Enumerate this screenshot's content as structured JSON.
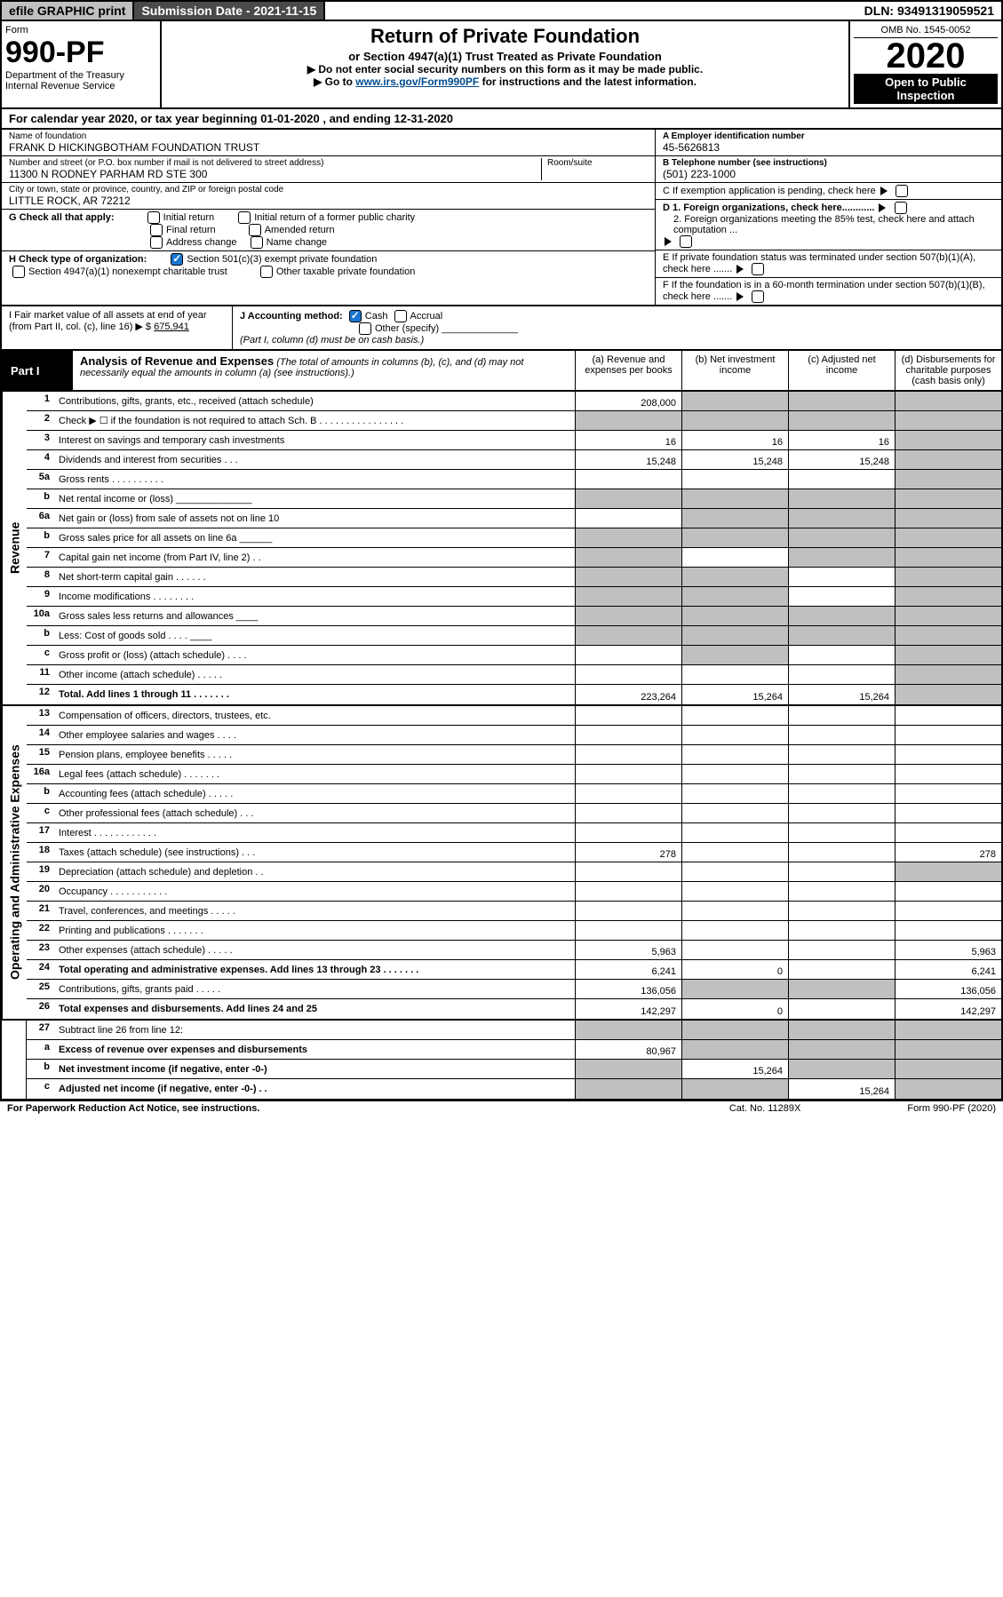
{
  "topbar": {
    "efile": "efile GRAPHIC print",
    "submission": "Submission Date - 2021-11-15",
    "dln": "DLN: 93491319059521"
  },
  "header": {
    "form": "Form",
    "form_no": "990-PF",
    "dept": "Department of the Treasury",
    "irs": "Internal Revenue Service",
    "title": "Return of Private Foundation",
    "sub": "or Section 4947(a)(1) Trust Treated as Private Foundation",
    "note1": "▶ Do not enter social security numbers on this form as it may be made public.",
    "note2_pre": "▶ Go to ",
    "note2_link": "www.irs.gov/Form990PF",
    "note2_post": " for instructions and the latest information.",
    "omb": "OMB No. 1545-0052",
    "year": "2020",
    "inspection": "Open to Public Inspection"
  },
  "calendar": {
    "pre": "For calendar year 2020, or tax year beginning ",
    "begin": "01-01-2020",
    "mid": " , and ending ",
    "end": "12-31-2020"
  },
  "info": {
    "name_lbl": "Name of foundation",
    "name_val": "FRANK D HICKINGBOTHAM FOUNDATION TRUST",
    "addr_lbl": "Number and street (or P.O. box number if mail is not delivered to street address)",
    "addr_val": "11300 N RODNEY PARHAM RD STE 300",
    "room_lbl": "Room/suite",
    "city_lbl": "City or town, state or province, country, and ZIP or foreign postal code",
    "city_val": "LITTLE ROCK, AR  72212",
    "a_lbl": "A Employer identification number",
    "a_val": "45-5626813",
    "b_lbl": "B Telephone number (see instructions)",
    "b_val": "(501) 223-1000",
    "c_lbl": "C If exemption application is pending, check here",
    "d1_lbl": "D 1. Foreign organizations, check here............",
    "d2_lbl": "2. Foreign organizations meeting the 85% test, check here and attach computation ...",
    "e_lbl": "E  If private foundation status was terminated under section 507(b)(1)(A), check here .......",
    "f_lbl": "F  If the foundation is in a 60-month termination under section 507(b)(1)(B), check here ......."
  },
  "g": {
    "lbl": "G Check all that apply:",
    "opts": [
      "Initial return",
      "Initial return of a former public charity",
      "Final return",
      "Amended return",
      "Address change",
      "Name change"
    ]
  },
  "h": {
    "lbl": "H Check type of organization:",
    "o1": "Section 501(c)(3) exempt private foundation",
    "o2": "Section 4947(a)(1) nonexempt charitable trust",
    "o3": "Other taxable private foundation"
  },
  "i": {
    "lbl": "I Fair market value of all assets at end of year (from Part II, col. (c), line 16) ▶ $",
    "val": "675,941"
  },
  "j": {
    "lbl": "J Accounting method:",
    "cash": "Cash",
    "accrual": "Accrual",
    "other": "Other (specify)",
    "note": "(Part I, column (d) must be on cash basis.)"
  },
  "part1": {
    "lbl": "Part I",
    "title": "Analysis of Revenue and Expenses",
    "note": "(The total of amounts in columns (b), (c), and (d) may not necessarily equal the amounts in column (a) (see instructions).)",
    "col_a": "(a)  Revenue and expenses per books",
    "col_b": "(b)  Net investment income",
    "col_c": "(c)  Adjusted net income",
    "col_d": "(d)  Disbursements for charitable purposes (cash basis only)"
  },
  "revenue_lbl": "Revenue",
  "expenses_lbl": "Operating and Administrative Expenses",
  "rows": {
    "r1": {
      "ln": "1",
      "desc": "Contributions, gifts, grants, etc., received (attach schedule)",
      "a": "208,000",
      "b": "",
      "c": "",
      "d": "",
      "grey_b": true,
      "grey_c": true,
      "grey_d": true
    },
    "r2": {
      "ln": "2",
      "desc": "Check ▶ ☐ if the foundation is not required to attach Sch. B  . . . . . . . . . . . . . . . .",
      "a": "",
      "b": "",
      "c": "",
      "d": "",
      "grey_a": true,
      "grey_b": true,
      "grey_c": true,
      "grey_d": true
    },
    "r3": {
      "ln": "3",
      "desc": "Interest on savings and temporary cash investments",
      "a": "16",
      "b": "16",
      "c": "16",
      "d": "",
      "grey_d": true
    },
    "r4": {
      "ln": "4",
      "desc": "Dividends and interest from securities   .   .   .",
      "a": "15,248",
      "b": "15,248",
      "c": "15,248",
      "d": "",
      "grey_d": true
    },
    "r5a": {
      "ln": "5a",
      "desc": "Gross rents   .   .   .   .   .   .   .   .   .   .",
      "a": "",
      "b": "",
      "c": "",
      "d": "",
      "grey_d": true
    },
    "r5b": {
      "ln": "b",
      "desc": "Net rental income or (loss)  ______________",
      "a": "",
      "b": "",
      "c": "",
      "d": "",
      "grey_a": true,
      "grey_b": true,
      "grey_c": true,
      "grey_d": true
    },
    "r6a": {
      "ln": "6a",
      "desc": "Net gain or (loss) from sale of assets not on line 10",
      "a": "",
      "b": "",
      "c": "",
      "d": "",
      "grey_b": true,
      "grey_c": true,
      "grey_d": true
    },
    "r6b": {
      "ln": "b",
      "desc": "Gross sales price for all assets on line 6a ______",
      "a": "",
      "b": "",
      "c": "",
      "d": "",
      "grey_a": true,
      "grey_b": true,
      "grey_c": true,
      "grey_d": true
    },
    "r7": {
      "ln": "7",
      "desc": "Capital gain net income (from Part IV, line 2)   .   .",
      "a": "",
      "b": "",
      "c": "",
      "d": "",
      "grey_a": true,
      "grey_c": true,
      "grey_d": true
    },
    "r8": {
      "ln": "8",
      "desc": "Net short-term capital gain  .   .   .   .   .   .",
      "a": "",
      "b": "",
      "c": "",
      "d": "",
      "grey_a": true,
      "grey_b": true,
      "grey_d": true
    },
    "r9": {
      "ln": "9",
      "desc": "Income modifications  .   .   .   .   .   .   .   .",
      "a": "",
      "b": "",
      "c": "",
      "d": "",
      "grey_a": true,
      "grey_b": true,
      "grey_d": true
    },
    "r10a": {
      "ln": "10a",
      "desc": "Gross sales less returns and allowances  ____",
      "a": "",
      "b": "",
      "c": "",
      "d": "",
      "grey_a": true,
      "grey_b": true,
      "grey_c": true,
      "grey_d": true
    },
    "r10b": {
      "ln": "b",
      "desc": "Less: Cost of goods sold    .   .   .   .  ____",
      "a": "",
      "b": "",
      "c": "",
      "d": "",
      "grey_a": true,
      "grey_b": true,
      "grey_c": true,
      "grey_d": true
    },
    "r10c": {
      "ln": "c",
      "desc": "Gross profit or (loss) (attach schedule)   .   .   .   .",
      "a": "",
      "b": "",
      "c": "",
      "d": "",
      "grey_b": true,
      "grey_d": true
    },
    "r11": {
      "ln": "11",
      "desc": "Other income (attach schedule)   .   .   .   .   .",
      "a": "",
      "b": "",
      "c": "",
      "d": "",
      "grey_d": true
    },
    "r12": {
      "ln": "12",
      "desc": "Total. Add lines 1 through 11   .   .   .   .   .   .   .",
      "a": "223,264",
      "b": "15,264",
      "c": "15,264",
      "d": "",
      "grey_d": true,
      "bold": true
    },
    "r13": {
      "ln": "13",
      "desc": "Compensation of officers, directors, trustees, etc.",
      "a": "",
      "b": "",
      "c": "",
      "d": ""
    },
    "r14": {
      "ln": "14",
      "desc": "Other employee salaries and wages   .   .   .   .",
      "a": "",
      "b": "",
      "c": "",
      "d": ""
    },
    "r15": {
      "ln": "15",
      "desc": "Pension plans, employee benefits   .   .   .   .   .",
      "a": "",
      "b": "",
      "c": "",
      "d": ""
    },
    "r16a": {
      "ln": "16a",
      "desc": "Legal fees (attach schedule)  .   .   .   .   .   .   .",
      "a": "",
      "b": "",
      "c": "",
      "d": ""
    },
    "r16b": {
      "ln": "b",
      "desc": "Accounting fees (attach schedule)  .   .   .   .   .",
      "a": "",
      "b": "",
      "c": "",
      "d": ""
    },
    "r16c": {
      "ln": "c",
      "desc": "Other professional fees (attach schedule)   .   .   .",
      "a": "",
      "b": "",
      "c": "",
      "d": ""
    },
    "r17": {
      "ln": "17",
      "desc": "Interest  .   .   .   .   .   .   .   .   .   .   .   .",
      "a": "",
      "b": "",
      "c": "",
      "d": ""
    },
    "r18": {
      "ln": "18",
      "desc": "Taxes (attach schedule) (see instructions)   .   .   .",
      "a": "278",
      "b": "",
      "c": "",
      "d": "278"
    },
    "r19": {
      "ln": "19",
      "desc": "Depreciation (attach schedule) and depletion   .   .",
      "a": "",
      "b": "",
      "c": "",
      "d": "",
      "grey_d": true
    },
    "r20": {
      "ln": "20",
      "desc": "Occupancy  .   .   .   .   .   .   .   .   .   .   .",
      "a": "",
      "b": "",
      "c": "",
      "d": ""
    },
    "r21": {
      "ln": "21",
      "desc": "Travel, conferences, and meetings  .   .   .   .   .",
      "a": "",
      "b": "",
      "c": "",
      "d": ""
    },
    "r22": {
      "ln": "22",
      "desc": "Printing and publications  .   .   .   .   .   .   .",
      "a": "",
      "b": "",
      "c": "",
      "d": ""
    },
    "r23": {
      "ln": "23",
      "desc": "Other expenses (attach schedule)  .   .   .   .   .",
      "a": "5,963",
      "b": "",
      "c": "",
      "d": "5,963"
    },
    "r24": {
      "ln": "24",
      "desc": "Total operating and administrative expenses. Add lines 13 through 23   .   .   .   .   .   .   .",
      "a": "6,241",
      "b": "0",
      "c": "",
      "d": "6,241",
      "bold": true
    },
    "r25": {
      "ln": "25",
      "desc": "Contributions, gifts, grants paid   .   .   .   .   .",
      "a": "136,056",
      "b": "",
      "c": "",
      "d": "136,056",
      "grey_b": true,
      "grey_c": true
    },
    "r26": {
      "ln": "26",
      "desc": "Total expenses and disbursements. Add lines 24 and 25",
      "a": "142,297",
      "b": "0",
      "c": "",
      "d": "142,297",
      "bold": true
    },
    "r27": {
      "ln": "27",
      "desc": "Subtract line 26 from line 12:",
      "a": "",
      "b": "",
      "c": "",
      "d": "",
      "grey_a": true,
      "grey_b": true,
      "grey_c": true,
      "grey_d": true
    },
    "r27a": {
      "ln": "a",
      "desc": "Excess of revenue over expenses and disbursements",
      "a": "80,967",
      "b": "",
      "c": "",
      "d": "",
      "bold": true,
      "grey_b": true,
      "grey_c": true,
      "grey_d": true
    },
    "r27b": {
      "ln": "b",
      "desc": "Net investment income (if negative, enter -0-)",
      "a": "",
      "b": "15,264",
      "c": "",
      "d": "",
      "bold": true,
      "grey_a": true,
      "grey_c": true,
      "grey_d": true
    },
    "r27c": {
      "ln": "c",
      "desc": "Adjusted net income (if negative, enter -0-)   .   .",
      "a": "",
      "b": "",
      "c": "15,264",
      "d": "",
      "bold": true,
      "grey_a": true,
      "grey_b": true,
      "grey_d": true
    }
  },
  "footer": {
    "left": "For Paperwork Reduction Act Notice, see instructions.",
    "mid": "Cat. No. 11289X",
    "right": "Form 990-PF (2020)"
  },
  "colors": {
    "grey": "#c0c0c0",
    "darkbar": "#4a4a4a",
    "link": "#004b8d",
    "check": "#1976d2"
  }
}
